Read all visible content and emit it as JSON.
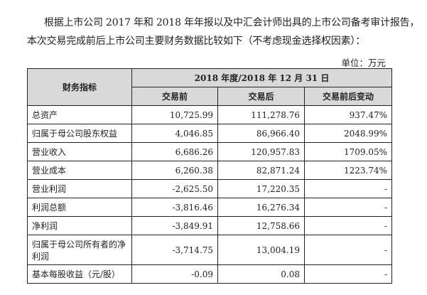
{
  "paragraph": {
    "line1": "根据上市公司 2017 年和 2018 年年报以及中汇会计师出具的上市公司备考审计报告，",
    "line2": "本次交易完成前后上市公司主要财务数据比较如下（不考虑现金选择权因素）："
  },
  "unit": "单位：万元",
  "table": {
    "header_metric": "财务指标",
    "header_period": "2018 年度/2018 年 12 月 31 日",
    "columns": [
      "交易前",
      "交易后",
      "交易前后变动"
    ],
    "rows": [
      {
        "label": "总资产",
        "before": "10,725.99",
        "after": "111,278.76",
        "change": "937.47%"
      },
      {
        "label": "归属于母公司股东权益",
        "before": "4,046.85",
        "after": "86,966.40",
        "change": "2048.99%"
      },
      {
        "label": "营业收入",
        "before": "6,686.26",
        "after": "120,957.83",
        "change": "1709.05%"
      },
      {
        "label": "营业成本",
        "before": "6,260.38",
        "after": "82,871.24",
        "change": "1223.74%"
      },
      {
        "label": "营业利润",
        "before": "-2,625.50",
        "after": "17,220.35",
        "change": "-"
      },
      {
        "label": "利润总额",
        "before": "-3,816.46",
        "after": "16,276.34",
        "change": "-"
      },
      {
        "label": "净利润",
        "before": "-3,849.91",
        "after": "12,758.66",
        "change": "-"
      },
      {
        "label": "归属于母公司所有者的净利润",
        "before": "-3,714.75",
        "after": "13,004.19",
        "change": "-"
      },
      {
        "label": "基本每股收益（元/股）",
        "before": "-0.09",
        "after": "0.08",
        "change": "-"
      }
    ]
  }
}
